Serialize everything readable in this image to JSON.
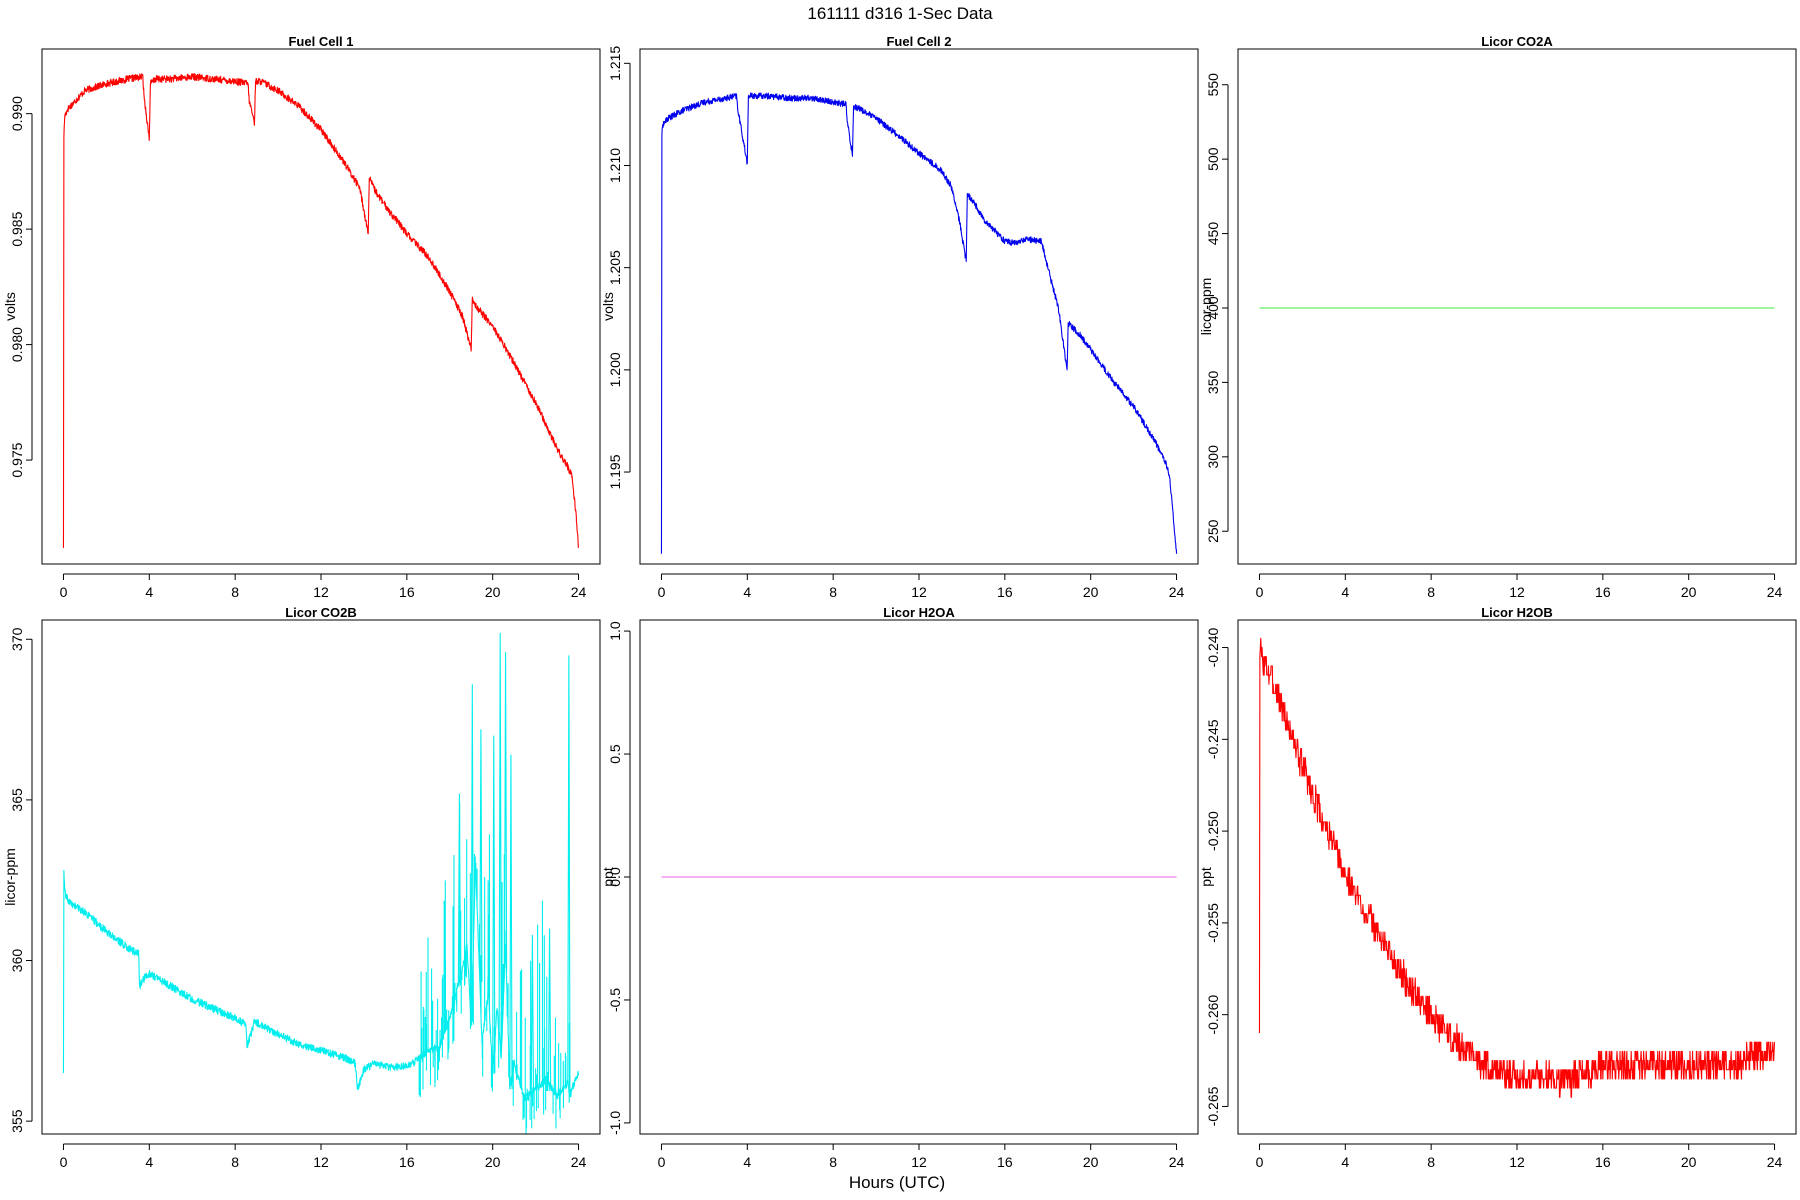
{
  "figure": {
    "title": "161111   d316   1-Sec Data",
    "xlabel": "Hours (UTC)"
  },
  "chart_data": [
    {
      "type": "line",
      "title": "Fuel Cell 1",
      "ylabel": "volts",
      "color": "#ff0000",
      "xlim": [
        -1,
        25
      ],
      "ylim": [
        0.9705,
        0.9928
      ],
      "xticks": [
        0,
        4,
        8,
        12,
        16,
        20,
        24
      ],
      "yticks": [
        0.975,
        0.98,
        0.985,
        0.99
      ],
      "ytick_labels": [
        "0.975",
        "0.980",
        "0.985",
        "0.990"
      ],
      "noise": 0.00015,
      "series": [
        {
          "x": [
            0,
            0.02,
            0.06,
            0.2,
            0.5,
            1.0,
            2.0,
            3.0,
            3.7,
            3.75,
            4.0,
            4.05,
            4.3,
            5.0,
            6.0,
            7.0,
            8.0,
            8.6,
            8.65,
            8.9,
            8.95,
            9.2,
            10.0,
            11.0,
            12.0,
            13.0,
            13.8,
            14.2,
            14.25,
            14.5,
            15.0,
            16.0,
            17.0,
            18.0,
            18.6,
            19.0,
            19.05,
            19.2,
            20.0,
            21.0,
            22.0,
            22.5,
            23.0,
            23.5,
            23.7,
            23.9,
            24.0
          ],
          "values": [
            0.9712,
            0.989,
            0.9899,
            0.9902,
            0.9905,
            0.991,
            0.9913,
            0.9915,
            0.9916,
            0.9908,
            0.9889,
            0.9913,
            0.9915,
            0.9915,
            0.9916,
            0.9915,
            0.9914,
            0.9913,
            0.9906,
            0.9896,
            0.9914,
            0.9914,
            0.991,
            0.9903,
            0.9893,
            0.988,
            0.9868,
            0.9848,
            0.9872,
            0.9867,
            0.986,
            0.9848,
            0.9838,
            0.9823,
            0.9812,
            0.9798,
            0.982,
            0.9817,
            0.9808,
            0.9792,
            0.9775,
            0.9765,
            0.9755,
            0.9747,
            0.9743,
            0.9725,
            0.9712
          ]
        }
      ]
    },
    {
      "type": "line",
      "title": "Fuel Cell 2",
      "ylabel": "volts",
      "color": "#0000ee",
      "xlim": [
        -1,
        25
      ],
      "ylim": [
        1.1905,
        1.2157
      ],
      "xticks": [
        0,
        4,
        8,
        12,
        16,
        20,
        24
      ],
      "yticks": [
        1.195,
        1.2,
        1.205,
        1.21,
        1.215
      ],
      "ytick_labels": [
        "1.195",
        "1.200",
        "1.205",
        "1.210",
        "1.215"
      ],
      "noise": 0.00015,
      "series": [
        {
          "x": [
            0,
            0.02,
            0.06,
            0.3,
            1.0,
            2.0,
            3.0,
            3.5,
            3.55,
            4.0,
            4.05,
            4.3,
            5.0,
            6.0,
            7.0,
            8.0,
            8.6,
            8.65,
            8.9,
            8.95,
            9.2,
            10.0,
            11.0,
            12.0,
            13.0,
            13.5,
            13.9,
            14.2,
            14.25,
            14.5,
            15.0,
            16.0,
            16.5,
            17.0,
            17.7,
            18.0,
            18.5,
            18.9,
            18.95,
            19.5,
            20.0,
            21.0,
            22.0,
            23.0,
            23.6,
            23.7,
            24.0
          ],
          "values": [
            1.191,
            1.2115,
            1.212,
            1.2123,
            1.2127,
            1.2131,
            1.2133,
            1.2134,
            1.2128,
            1.2101,
            1.2134,
            1.2134,
            1.2134,
            1.2133,
            1.2133,
            1.2131,
            1.213,
            1.2122,
            1.2105,
            1.2129,
            1.2128,
            1.2123,
            1.2115,
            1.2106,
            1.2098,
            1.209,
            1.2072,
            1.2053,
            1.2086,
            1.2083,
            1.2074,
            1.2063,
            1.2062,
            1.2064,
            1.2063,
            1.205,
            1.203,
            1.2,
            1.2023,
            1.2017,
            1.201,
            1.1995,
            1.1982,
            1.1965,
            1.1952,
            1.1945,
            1.191
          ]
        }
      ]
    },
    {
      "type": "line",
      "title": "Licor CO2A",
      "ylabel": "licor-ppm",
      "color": "#66ee66",
      "xlim": [
        -1,
        25
      ],
      "ylim": [
        228,
        574
      ],
      "xticks": [
        0,
        4,
        8,
        12,
        16,
        20,
        24
      ],
      "yticks": [
        250,
        300,
        350,
        400,
        450,
        500,
        550
      ],
      "ytick_labels": [
        "250",
        "300",
        "350",
        "400",
        "450",
        "500",
        "550"
      ],
      "noise": 0,
      "series": [
        {
          "x": [
            0,
            24
          ],
          "values": [
            400,
            400
          ]
        }
      ]
    },
    {
      "type": "line",
      "title": "Licor CO2B",
      "ylabel": "licor-ppm",
      "color": "#00eeee",
      "xlim": [
        -1,
        25
      ],
      "ylim": [
        354.6,
        370.6
      ],
      "xticks": [
        0,
        4,
        8,
        12,
        16,
        20,
        24
      ],
      "yticks": [
        355,
        360,
        365,
        370
      ],
      "ytick_labels": [
        "355",
        "360",
        "365",
        "370"
      ],
      "noise": 0.12,
      "series": [
        {
          "x": [
            0,
            0.02,
            0.05,
            0.1,
            0.3,
            1.0,
            2.0,
            3.0,
            3.5,
            3.55,
            3.7,
            4.0,
            5.0,
            6.0,
            7.0,
            8.0,
            8.5,
            8.55,
            8.9,
            10.0,
            11.0,
            12.0,
            13.0,
            13.6,
            13.7,
            14.0,
            14.5,
            15.0,
            15.5,
            16.0,
            16.5,
            17.0,
            17.5,
            18.0,
            18.5,
            18.8,
            19.0,
            19.2,
            19.5,
            19.8,
            20.0,
            20.2,
            20.4,
            20.6,
            20.8,
            21.0,
            21.5,
            22.0,
            22.5,
            23.0,
            23.5,
            23.6,
            23.8,
            24.0
          ],
          "values": [
            356.5,
            362.8,
            362.3,
            362.0,
            361.8,
            361.5,
            360.9,
            360.4,
            360.2,
            359.2,
            359.4,
            359.6,
            359.2,
            358.8,
            358.5,
            358.2,
            358.0,
            357.3,
            358.1,
            357.7,
            357.4,
            357.2,
            357.0,
            356.8,
            356.0,
            356.6,
            356.8,
            356.7,
            356.7,
            356.7,
            356.9,
            357.2,
            357.3,
            358.2,
            359.5,
            360.5,
            358.0,
            363.0,
            357.5,
            359.0,
            356.5,
            358.5,
            357.0,
            360.5,
            356.0,
            356.8,
            355.7,
            356.0,
            356.3,
            355.8,
            356.2,
            355.8,
            356.2,
            356.5
          ]
        }
      ],
      "spikes": {
        "x_start": 16.5,
        "x_end": 23.6,
        "count": 230,
        "seed": 7,
        "peaks": [
          {
            "x": 19.0,
            "value": 368.6
          },
          {
            "x": 19.4,
            "value": 367.2
          },
          {
            "x": 20.0,
            "value": 367.0
          },
          {
            "x": 20.3,
            "value": 370.2
          },
          {
            "x": 20.55,
            "value": 369.6
          },
          {
            "x": 20.8,
            "value": 366.4
          },
          {
            "x": 18.4,
            "value": 365.2
          },
          {
            "x": 21.8,
            "value": 360.8
          },
          {
            "x": 22.6,
            "value": 361.0
          },
          {
            "x": 23.5,
            "value": 369.5
          }
        ]
      }
    },
    {
      "type": "line",
      "title": "Licor H2OA",
      "ylabel": "ppt",
      "color": "#ee82ee",
      "xlim": [
        -1,
        25
      ],
      "ylim": [
        -1.045,
        1.045
      ],
      "xticks": [
        0,
        4,
        8,
        12,
        16,
        20,
        24
      ],
      "yticks": [
        -1.0,
        -0.5,
        0.0,
        0.5,
        1.0
      ],
      "ytick_labels": [
        "-1.0",
        "-0.5",
        "0.0",
        "0.5",
        "1.0"
      ],
      "noise": 0,
      "series": [
        {
          "x": [
            0,
            24
          ],
          "values": [
            0,
            0
          ]
        }
      ]
    },
    {
      "type": "line",
      "title": "Licor H2OB",
      "ylabel": "ppt",
      "color": "#ff0000",
      "xlim": [
        -1,
        25
      ],
      "ylim": [
        -0.2665,
        -0.2385
      ],
      "xticks": [
        0,
        4,
        8,
        12,
        16,
        20,
        24
      ],
      "yticks": [
        -0.265,
        -0.26,
        -0.255,
        -0.25,
        -0.245,
        -0.24
      ],
      "ytick_labels": [
        "-0.265",
        "-0.260",
        "-0.255",
        "-0.250",
        "-0.245",
        "-0.240"
      ],
      "noise": 0,
      "quantized": {
        "step": 0.0005,
        "band": 0.0008,
        "seed": 3
      },
      "series": [
        {
          "x": [
            0,
            0.02,
            0.1,
            0.5,
            1.0,
            2.0,
            3.0,
            4.0,
            5.0,
            6.0,
            7.0,
            8.0,
            9.0,
            10.0,
            11.0,
            12.0,
            13.0,
            14.0,
            14.5,
            15.0,
            16.0,
            17.0,
            18.0,
            19.0,
            20.0,
            21.0,
            22.0,
            23.0,
            24.0
          ],
          "values": [
            -0.261,
            -0.24,
            -0.2405,
            -0.2415,
            -0.243,
            -0.2465,
            -0.2495,
            -0.2525,
            -0.2545,
            -0.2565,
            -0.2585,
            -0.26,
            -0.2613,
            -0.2623,
            -0.263,
            -0.2633,
            -0.2634,
            -0.2635,
            -0.2635,
            -0.2632,
            -0.2628,
            -0.2627,
            -0.2627,
            -0.2627,
            -0.2627,
            -0.2627,
            -0.2627,
            -0.2623,
            -0.262
          ]
        }
      ]
    }
  ]
}
